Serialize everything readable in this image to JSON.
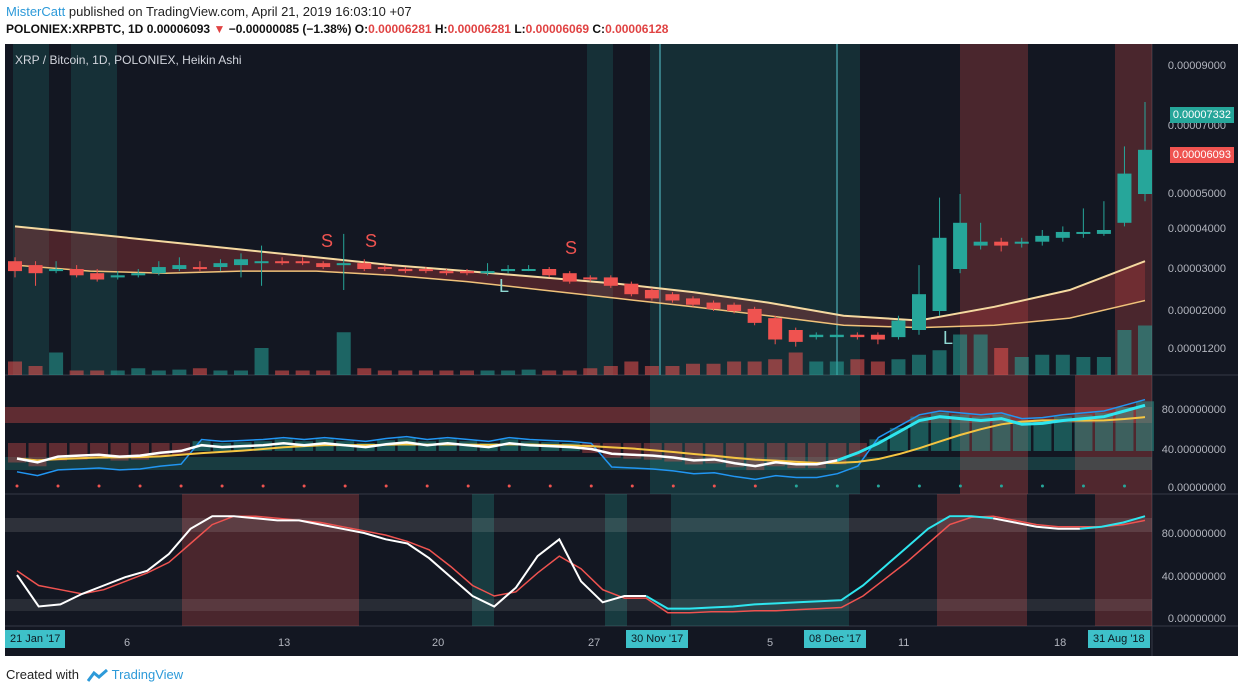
{
  "header": {
    "user": "MisterCatt",
    "published": "published on TradingView.com, April 21, 2019 16:03:10 +07",
    "symbol": "POLONIEX:XRPBTC, 1D",
    "price": "0.00006093",
    "change": "−0.00000085 (−1.38%)",
    "o_label": "O:",
    "o_value": "0.00006281",
    "h_label": "H:",
    "h_value": "0.00006281",
    "l_label": "L:",
    "l_value": "0.00006069",
    "c_label": "C:",
    "c_value": "0.00006128"
  },
  "chart": {
    "title": "XRP / Bitcoin, 1D, POLONIEX, Heikin Ashi",
    "price_tags": {
      "top": "0.00007332",
      "bottom": "0.00006093"
    },
    "y_axis_main": [
      "0.00009000",
      "0.00007000",
      "0.00005000",
      "0.00004000",
      "0.00003000",
      "0.00002000",
      "0.00001200"
    ],
    "y_axis_rsi": [
      "80.00000000",
      "40.00000000",
      "0.00000000"
    ],
    "y_axis_stoch": [
      "80.00000000",
      "40.00000000",
      "0.00000000"
    ],
    "x_axis": {
      "ticks": [
        "6",
        "13",
        "20",
        "27",
        "5",
        "11",
        "18"
      ],
      "badges": [
        "21 Jan '17",
        "30 Nov '17",
        "08 Dec '17",
        "31 Aug '18"
      ]
    },
    "markers": [
      "S",
      "S",
      "S",
      "L",
      "L"
    ]
  },
  "chart_data": {
    "type": "candlestick",
    "title": "XRP / Bitcoin, 1D, POLONIEX, Heikin Ashi",
    "candles": [
      {
        "o": 3.2,
        "c": 2.95,
        "h": 3.3,
        "l": 2.8
      },
      {
        "o": 3.1,
        "c": 2.9,
        "h": 3.2,
        "l": 2.6
      },
      {
        "o": 2.95,
        "c": 3.0,
        "h": 3.2,
        "l": 2.9
      },
      {
        "o": 3.0,
        "c": 2.85,
        "h": 3.1,
        "l": 2.8
      },
      {
        "o": 2.9,
        "c": 2.75,
        "h": 3.0,
        "l": 2.7
      },
      {
        "o": 2.8,
        "c": 2.85,
        "h": 2.95,
        "l": 2.75
      },
      {
        "o": 2.85,
        "c": 2.9,
        "h": 3.0,
        "l": 2.8
      },
      {
        "o": 2.9,
        "c": 3.05,
        "h": 3.2,
        "l": 2.85
      },
      {
        "o": 3.0,
        "c": 3.1,
        "h": 3.3,
        "l": 2.95
      },
      {
        "o": 3.05,
        "c": 3.0,
        "h": 3.2,
        "l": 2.95
      },
      {
        "o": 3.05,
        "c": 3.15,
        "h": 3.25,
        "l": 2.95
      },
      {
        "o": 3.1,
        "c": 3.25,
        "h": 3.4,
        "l": 2.8
      },
      {
        "o": 3.15,
        "c": 3.2,
        "h": 3.6,
        "l": 2.6
      },
      {
        "o": 3.2,
        "c": 3.15,
        "h": 3.3,
        "l": 3.1
      },
      {
        "o": 3.2,
        "c": 3.15,
        "h": 3.3,
        "l": 3.1
      },
      {
        "o": 3.15,
        "c": 3.05,
        "h": 3.2,
        "l": 3.0
      },
      {
        "o": 3.1,
        "c": 3.15,
        "h": 3.9,
        "l": 2.5
      },
      {
        "o": 3.15,
        "c": 3.0,
        "h": 3.25,
        "l": 2.95
      },
      {
        "o": 3.05,
        "c": 3.0,
        "h": 3.1,
        "l": 2.95
      },
      {
        "o": 3.0,
        "c": 2.95,
        "h": 3.05,
        "l": 2.9
      },
      {
        "o": 3.0,
        "c": 2.95,
        "h": 3.05,
        "l": 2.9
      },
      {
        "o": 2.95,
        "c": 2.9,
        "h": 3.0,
        "l": 2.85
      },
      {
        "o": 2.95,
        "c": 2.9,
        "h": 3.0,
        "l": 2.85
      },
      {
        "o": 2.9,
        "c": 2.95,
        "h": 3.15,
        "l": 2.85
      },
      {
        "o": 2.95,
        "c": 3.0,
        "h": 3.1,
        "l": 2.9
      },
      {
        "o": 3.0,
        "c": 3.0,
        "h": 3.1,
        "l": 2.95
      },
      {
        "o": 3.0,
        "c": 2.85,
        "h": 3.05,
        "l": 2.8
      },
      {
        "o": 2.9,
        "c": 2.7,
        "h": 2.95,
        "l": 2.65
      },
      {
        "o": 2.8,
        "c": 2.75,
        "h": 2.85,
        "l": 2.7
      },
      {
        "o": 2.8,
        "c": 2.6,
        "h": 2.85,
        "l": 2.55
      },
      {
        "o": 2.65,
        "c": 2.4,
        "h": 2.7,
        "l": 2.35
      },
      {
        "o": 2.5,
        "c": 2.3,
        "h": 2.55,
        "l": 2.25
      },
      {
        "o": 2.4,
        "c": 2.25,
        "h": 2.45,
        "l": 2.2
      },
      {
        "o": 2.3,
        "c": 2.15,
        "h": 2.35,
        "l": 2.1
      },
      {
        "o": 2.2,
        "c": 2.05,
        "h": 2.25,
        "l": 2.0
      },
      {
        "o": 2.15,
        "c": 2.0,
        "h": 2.2,
        "l": 1.95
      },
      {
        "o": 2.05,
        "c": 1.75,
        "h": 2.1,
        "l": 1.7
      },
      {
        "o": 1.85,
        "c": 1.4,
        "h": 1.9,
        "l": 1.3
      },
      {
        "o": 1.6,
        "c": 1.35,
        "h": 1.65,
        "l": 1.25
      },
      {
        "o": 1.45,
        "c": 1.5,
        "h": 1.55,
        "l": 1.4
      },
      {
        "o": 1.45,
        "c": 1.5,
        "h": 1.6,
        "l": 1.4
      },
      {
        "o": 1.5,
        "c": 1.45,
        "h": 1.55,
        "l": 1.4
      },
      {
        "o": 1.5,
        "c": 1.4,
        "h": 1.55,
        "l": 1.3
      },
      {
        "o": 1.45,
        "c": 1.8,
        "h": 1.9,
        "l": 1.4
      },
      {
        "o": 1.6,
        "c": 2.4,
        "h": 3.1,
        "l": 1.5
      },
      {
        "o": 2.0,
        "c": 3.8,
        "h": 4.9,
        "l": 1.9
      },
      {
        "o": 3.0,
        "c": 4.2,
        "h": 5.0,
        "l": 2.9
      },
      {
        "o": 3.6,
        "c": 3.7,
        "h": 4.2,
        "l": 3.5
      },
      {
        "o": 3.7,
        "c": 3.6,
        "h": 3.8,
        "l": 3.45
      },
      {
        "o": 3.65,
        "c": 3.7,
        "h": 3.8,
        "l": 3.55
      },
      {
        "o": 3.7,
        "c": 3.85,
        "h": 4.0,
        "l": 3.6
      },
      {
        "o": 3.8,
        "c": 3.95,
        "h": 4.1,
        "l": 3.7
      },
      {
        "o": 3.9,
        "c": 3.95,
        "h": 4.6,
        "l": 3.8
      },
      {
        "o": 3.9,
        "c": 4.0,
        "h": 4.8,
        "l": 3.85
      },
      {
        "o": 4.2,
        "c": 5.6,
        "h": 6.4,
        "l": 4.1
      },
      {
        "o": 5.0,
        "c": 6.3,
        "h": 7.8,
        "l": 4.8
      }
    ],
    "volume": [
      0.3,
      0.2,
      0.5,
      0.1,
      0.1,
      0.1,
      0.15,
      0.1,
      0.12,
      0.15,
      0.1,
      0.1,
      0.6,
      0.1,
      0.1,
      0.1,
      0.95,
      0.15,
      0.1,
      0.1,
      0.1,
      0.1,
      0.1,
      0.1,
      0.1,
      0.12,
      0.1,
      0.1,
      0.15,
      0.2,
      0.3,
      0.2,
      0.2,
      0.25,
      0.25,
      0.3,
      0.3,
      0.35,
      0.5,
      0.3,
      0.3,
      0.35,
      0.3,
      0.35,
      0.45,
      0.55,
      0.9,
      0.9,
      0.6,
      0.4,
      0.45,
      0.45,
      0.4,
      0.4,
      1.0,
      1.1
    ],
    "rsi_white": [
      30,
      26,
      32,
      33,
      34,
      32,
      33,
      36,
      38,
      44,
      42,
      43,
      44,
      46,
      44,
      46,
      44,
      42,
      45,
      47,
      44,
      46,
      44,
      42,
      46,
      44,
      43,
      42,
      40,
      35,
      34,
      33,
      31,
      28,
      29,
      25,
      22,
      26,
      24,
      24,
      28,
      36,
      46,
      58,
      70,
      74,
      72,
      70,
      72,
      66,
      67,
      70,
      72,
      74,
      80,
      86
    ],
    "stoch_white": [
      40,
      10,
      12,
      22,
      30,
      38,
      44,
      60,
      84,
      96,
      96,
      94,
      92,
      92,
      88,
      84,
      80,
      74,
      70,
      56,
      38,
      20,
      10,
      28,
      58,
      74,
      34,
      14,
      20,
      20,
      8,
      8,
      9,
      10,
      12,
      13,
      14,
      15,
      16,
      30,
      48,
      66,
      84,
      96,
      96,
      94,
      90,
      86,
      84,
      84,
      86,
      90,
      96
    ],
    "stoch_red": [
      44,
      30,
      26,
      22,
      26,
      34,
      42,
      52,
      70,
      88,
      96,
      96,
      94,
      92,
      90,
      86,
      82,
      78,
      72,
      64,
      48,
      30,
      20,
      24,
      42,
      58,
      46,
      26,
      18,
      18,
      4,
      4,
      5,
      5,
      6,
      6,
      7,
      8,
      9,
      20,
      36,
      52,
      70,
      88,
      95,
      96,
      92,
      88,
      86,
      86,
      86,
      88,
      92
    ]
  }
}
